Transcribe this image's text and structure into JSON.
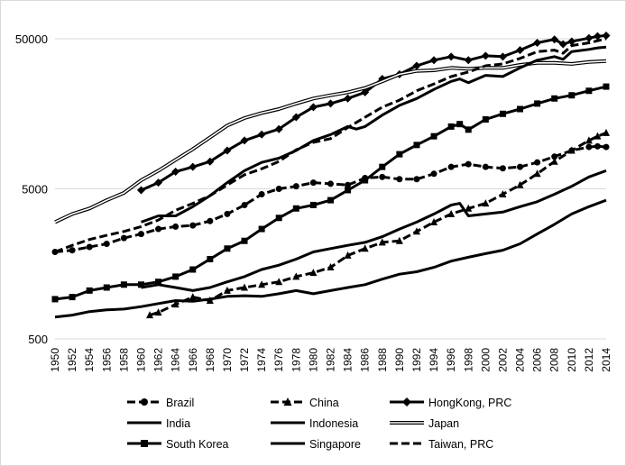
{
  "chart_data": {
    "type": "line",
    "title": "",
    "xlabel": "",
    "ylabel": "",
    "y_scale": "log",
    "ylim": [
      500,
      65000
    ],
    "y_ticks": [
      500,
      5000,
      50000
    ],
    "y_tick_labels": [
      "500",
      "5000",
      "50000"
    ],
    "x_ticks": [
      1950,
      1952,
      1954,
      1956,
      1958,
      1960,
      1962,
      1964,
      1966,
      1968,
      1970,
      1972,
      1974,
      1976,
      1978,
      1980,
      1982,
      1984,
      1986,
      1988,
      1990,
      1992,
      1994,
      1996,
      1998,
      2000,
      2002,
      2004,
      2006,
      2008,
      2010,
      2012,
      2014
    ],
    "x_tick_labels": [
      "1950",
      "1952",
      "1954",
      "1956",
      "1958",
      "1960",
      "1962",
      "1964",
      "1966",
      "1968",
      "1970",
      "1972",
      "1974",
      "1976",
      "1978",
      "1980",
      "1982",
      "1984",
      "1986",
      "1988",
      "1990",
      "1992",
      "1994",
      "1996",
      "1998",
      "2000",
      "2002",
      "2004",
      "2006",
      "2008",
      "2010",
      "2012",
      "2014"
    ],
    "xlim": [
      1950,
      2014
    ],
    "grid": "horizontal",
    "legend_position": "bottom",
    "series": [
      {
        "name": "Brazil",
        "line": "dashed",
        "marker": "circle",
        "points": [
          [
            1950,
            1900
          ],
          [
            1952,
            1950
          ],
          [
            1954,
            2050
          ],
          [
            1956,
            2150
          ],
          [
            1958,
            2350
          ],
          [
            1960,
            2500
          ],
          [
            1962,
            2700
          ],
          [
            1964,
            2800
          ],
          [
            1966,
            2850
          ],
          [
            1968,
            3050
          ],
          [
            1970,
            3400
          ],
          [
            1972,
            3900
          ],
          [
            1974,
            4600
          ],
          [
            1976,
            5000
          ],
          [
            1978,
            5200
          ],
          [
            1980,
            5500
          ],
          [
            1982,
            5400
          ],
          [
            1984,
            5300
          ],
          [
            1986,
            5900
          ],
          [
            1988,
            6000
          ],
          [
            1990,
            5800
          ],
          [
            1992,
            5800
          ],
          [
            1994,
            6300
          ],
          [
            1996,
            7000
          ],
          [
            1998,
            7300
          ],
          [
            2000,
            7000
          ],
          [
            2002,
            6850
          ],
          [
            2004,
            7000
          ],
          [
            2006,
            7500
          ],
          [
            2008,
            8200
          ],
          [
            2010,
            9000
          ],
          [
            2012,
            9500
          ],
          [
            2013,
            9600
          ],
          [
            2014,
            9500
          ]
        ]
      },
      {
        "name": "China",
        "line": "dashed",
        "marker": "triangle",
        "points": [
          [
            1961,
            720
          ],
          [
            1962,
            750
          ],
          [
            1964,
            850
          ],
          [
            1966,
            950
          ],
          [
            1968,
            900
          ],
          [
            1970,
            1050
          ],
          [
            1972,
            1100
          ],
          [
            1974,
            1150
          ],
          [
            1976,
            1200
          ],
          [
            1978,
            1300
          ],
          [
            1980,
            1380
          ],
          [
            1982,
            1500
          ],
          [
            1984,
            1800
          ],
          [
            1986,
            2000
          ],
          [
            1988,
            2200
          ],
          [
            1990,
            2250
          ],
          [
            1992,
            2600
          ],
          [
            1994,
            3000
          ],
          [
            1996,
            3400
          ],
          [
            1998,
            3700
          ],
          [
            2000,
            4000
          ],
          [
            2002,
            4600
          ],
          [
            2004,
            5300
          ],
          [
            2006,
            6300
          ],
          [
            2008,
            7600
          ],
          [
            2010,
            9000
          ],
          [
            2012,
            10500
          ],
          [
            2013,
            11200
          ],
          [
            2014,
            11800
          ]
        ]
      },
      {
        "name": "HongKong, PRC",
        "line": "solid",
        "marker": "diamond",
        "points": [
          [
            1960,
            4900
          ],
          [
            1962,
            5500
          ],
          [
            1964,
            6500
          ],
          [
            1966,
            7000
          ],
          [
            1968,
            7600
          ],
          [
            1970,
            9000
          ],
          [
            1972,
            10500
          ],
          [
            1974,
            11500
          ],
          [
            1976,
            12500
          ],
          [
            1978,
            15000
          ],
          [
            1980,
            17500
          ],
          [
            1982,
            18500
          ],
          [
            1984,
            20000
          ],
          [
            1986,
            22000
          ],
          [
            1988,
            27000
          ],
          [
            1990,
            29000
          ],
          [
            1992,
            33000
          ],
          [
            1994,
            36000
          ],
          [
            1996,
            38000
          ],
          [
            1998,
            36000
          ],
          [
            2000,
            38500
          ],
          [
            2002,
            38000
          ],
          [
            2004,
            42000
          ],
          [
            2006,
            47000
          ],
          [
            2008,
            49500
          ],
          [
            2009,
            46000
          ],
          [
            2010,
            48000
          ],
          [
            2012,
            50500
          ],
          [
            2013,
            52000
          ],
          [
            2014,
            52500
          ]
        ]
      },
      {
        "name": "India",
        "line": "solid",
        "marker": "none",
        "points": [
          [
            1950,
            700
          ],
          [
            1952,
            720
          ],
          [
            1954,
            760
          ],
          [
            1956,
            780
          ],
          [
            1958,
            790
          ],
          [
            1960,
            820
          ],
          [
            1962,
            860
          ],
          [
            1964,
            900
          ],
          [
            1966,
            890
          ],
          [
            1968,
            920
          ],
          [
            1970,
            960
          ],
          [
            1972,
            970
          ],
          [
            1974,
            960
          ],
          [
            1976,
            1000
          ],
          [
            1978,
            1050
          ],
          [
            1980,
            1000
          ],
          [
            1982,
            1050
          ],
          [
            1984,
            1100
          ],
          [
            1986,
            1150
          ],
          [
            1988,
            1250
          ],
          [
            1990,
            1350
          ],
          [
            1992,
            1400
          ],
          [
            1994,
            1500
          ],
          [
            1996,
            1650
          ],
          [
            1998,
            1750
          ],
          [
            2000,
            1850
          ],
          [
            2002,
            1950
          ],
          [
            2004,
            2150
          ],
          [
            2006,
            2500
          ],
          [
            2008,
            2900
          ],
          [
            2010,
            3400
          ],
          [
            2012,
            3800
          ],
          [
            2014,
            4200
          ]
        ]
      },
      {
        "name": "Indonesia",
        "line": "solid",
        "marker": "none",
        "points": [
          [
            1960,
            1100
          ],
          [
            1962,
            1150
          ],
          [
            1964,
            1100
          ],
          [
            1966,
            1050
          ],
          [
            1968,
            1100
          ],
          [
            1970,
            1200
          ],
          [
            1972,
            1300
          ],
          [
            1974,
            1450
          ],
          [
            1976,
            1550
          ],
          [
            1978,
            1700
          ],
          [
            1980,
            1900
          ],
          [
            1982,
            2000
          ],
          [
            1984,
            2100
          ],
          [
            1986,
            2200
          ],
          [
            1988,
            2400
          ],
          [
            1990,
            2700
          ],
          [
            1992,
            3000
          ],
          [
            1994,
            3400
          ],
          [
            1996,
            3900
          ],
          [
            1997,
            4000
          ],
          [
            1998,
            3300
          ],
          [
            2000,
            3400
          ],
          [
            2002,
            3500
          ],
          [
            2004,
            3800
          ],
          [
            2006,
            4100
          ],
          [
            2008,
            4600
          ],
          [
            2010,
            5200
          ],
          [
            2012,
            6000
          ],
          [
            2014,
            6600
          ]
        ]
      },
      {
        "name": "Japan",
        "line": "double",
        "marker": "none",
        "points": [
          [
            1950,
            3000
          ],
          [
            1952,
            3400
          ],
          [
            1954,
            3700
          ],
          [
            1956,
            4200
          ],
          [
            1958,
            4700
          ],
          [
            1960,
            5700
          ],
          [
            1962,
            6600
          ],
          [
            1964,
            7800
          ],
          [
            1966,
            9200
          ],
          [
            1968,
            11000
          ],
          [
            1970,
            13200
          ],
          [
            1972,
            14800
          ],
          [
            1974,
            16000
          ],
          [
            1976,
            17000
          ],
          [
            1978,
            18500
          ],
          [
            1980,
            20000
          ],
          [
            1982,
            21000
          ],
          [
            1984,
            22000
          ],
          [
            1986,
            23500
          ],
          [
            1988,
            26000
          ],
          [
            1990,
            29000
          ],
          [
            1992,
            30500
          ],
          [
            1994,
            30800
          ],
          [
            1996,
            32000
          ],
          [
            1998,
            31500
          ],
          [
            2000,
            32000
          ],
          [
            2002,
            32000
          ],
          [
            2004,
            33500
          ],
          [
            2006,
            34500
          ],
          [
            2008,
            34500
          ],
          [
            2010,
            34000
          ],
          [
            2012,
            35000
          ],
          [
            2014,
            35500
          ]
        ]
      },
      {
        "name": "South Korea",
        "line": "solid",
        "marker": "square",
        "points": [
          [
            1950,
            920
          ],
          [
            1952,
            950
          ],
          [
            1954,
            1050
          ],
          [
            1956,
            1100
          ],
          [
            1958,
            1150
          ],
          [
            1960,
            1150
          ],
          [
            1962,
            1200
          ],
          [
            1964,
            1300
          ],
          [
            1966,
            1450
          ],
          [
            1968,
            1700
          ],
          [
            1970,
            2000
          ],
          [
            1972,
            2250
          ],
          [
            1974,
            2700
          ],
          [
            1976,
            3200
          ],
          [
            1978,
            3700
          ],
          [
            1980,
            3900
          ],
          [
            1982,
            4200
          ],
          [
            1984,
            4900
          ],
          [
            1986,
            5700
          ],
          [
            1988,
            7000
          ],
          [
            1990,
            8500
          ],
          [
            1992,
            9800
          ],
          [
            1994,
            11200
          ],
          [
            1996,
            13000
          ],
          [
            1997,
            13500
          ],
          [
            1998,
            12400
          ],
          [
            2000,
            14500
          ],
          [
            2002,
            15800
          ],
          [
            2004,
            17000
          ],
          [
            2006,
            18500
          ],
          [
            2008,
            20000
          ],
          [
            2010,
            21000
          ],
          [
            2012,
            22500
          ],
          [
            2014,
            24000
          ]
        ]
      },
      {
        "name": "Singapore",
        "line": "solid",
        "marker": "none",
        "points": [
          [
            1960,
            3000
          ],
          [
            1962,
            3300
          ],
          [
            1964,
            3300
          ],
          [
            1966,
            3800
          ],
          [
            1968,
            4500
          ],
          [
            1970,
            5500
          ],
          [
            1972,
            6600
          ],
          [
            1974,
            7500
          ],
          [
            1976,
            8000
          ],
          [
            1978,
            9000
          ],
          [
            1980,
            10500
          ],
          [
            1982,
            11500
          ],
          [
            1984,
            13000
          ],
          [
            1985,
            12500
          ],
          [
            1986,
            13000
          ],
          [
            1988,
            15500
          ],
          [
            1990,
            18000
          ],
          [
            1992,
            20000
          ],
          [
            1994,
            23000
          ],
          [
            1996,
            26000
          ],
          [
            1997,
            27000
          ],
          [
            1998,
            25500
          ],
          [
            2000,
            28500
          ],
          [
            2002,
            28000
          ],
          [
            2004,
            32000
          ],
          [
            2006,
            36000
          ],
          [
            2008,
            38000
          ],
          [
            2009,
            36500
          ],
          [
            2010,
            41000
          ],
          [
            2012,
            42500
          ],
          [
            2013,
            43500
          ],
          [
            2014,
            44000
          ]
        ]
      },
      {
        "name": "Taiwan, PRC",
        "line": "dashed",
        "marker": "none",
        "points": [
          [
            1950,
            1900
          ],
          [
            1952,
            2100
          ],
          [
            1954,
            2300
          ],
          [
            1956,
            2450
          ],
          [
            1958,
            2600
          ],
          [
            1960,
            2800
          ],
          [
            1962,
            3100
          ],
          [
            1964,
            3600
          ],
          [
            1966,
            4000
          ],
          [
            1968,
            4500
          ],
          [
            1970,
            5300
          ],
          [
            1972,
            6200
          ],
          [
            1974,
            6800
          ],
          [
            1976,
            7600
          ],
          [
            1978,
            9100
          ],
          [
            1980,
            10200
          ],
          [
            1982,
            10800
          ],
          [
            1984,
            12800
          ],
          [
            1986,
            15000
          ],
          [
            1988,
            17500
          ],
          [
            1990,
            19500
          ],
          [
            1992,
            22500
          ],
          [
            1994,
            25000
          ],
          [
            1996,
            28000
          ],
          [
            1998,
            30000
          ],
          [
            2000,
            33000
          ],
          [
            2002,
            34000
          ],
          [
            2004,
            37000
          ],
          [
            2006,
            41000
          ],
          [
            2008,
            42000
          ],
          [
            2009,
            40000
          ],
          [
            2010,
            45000
          ],
          [
            2012,
            47000
          ],
          [
            2014,
            50000
          ]
        ]
      }
    ]
  }
}
